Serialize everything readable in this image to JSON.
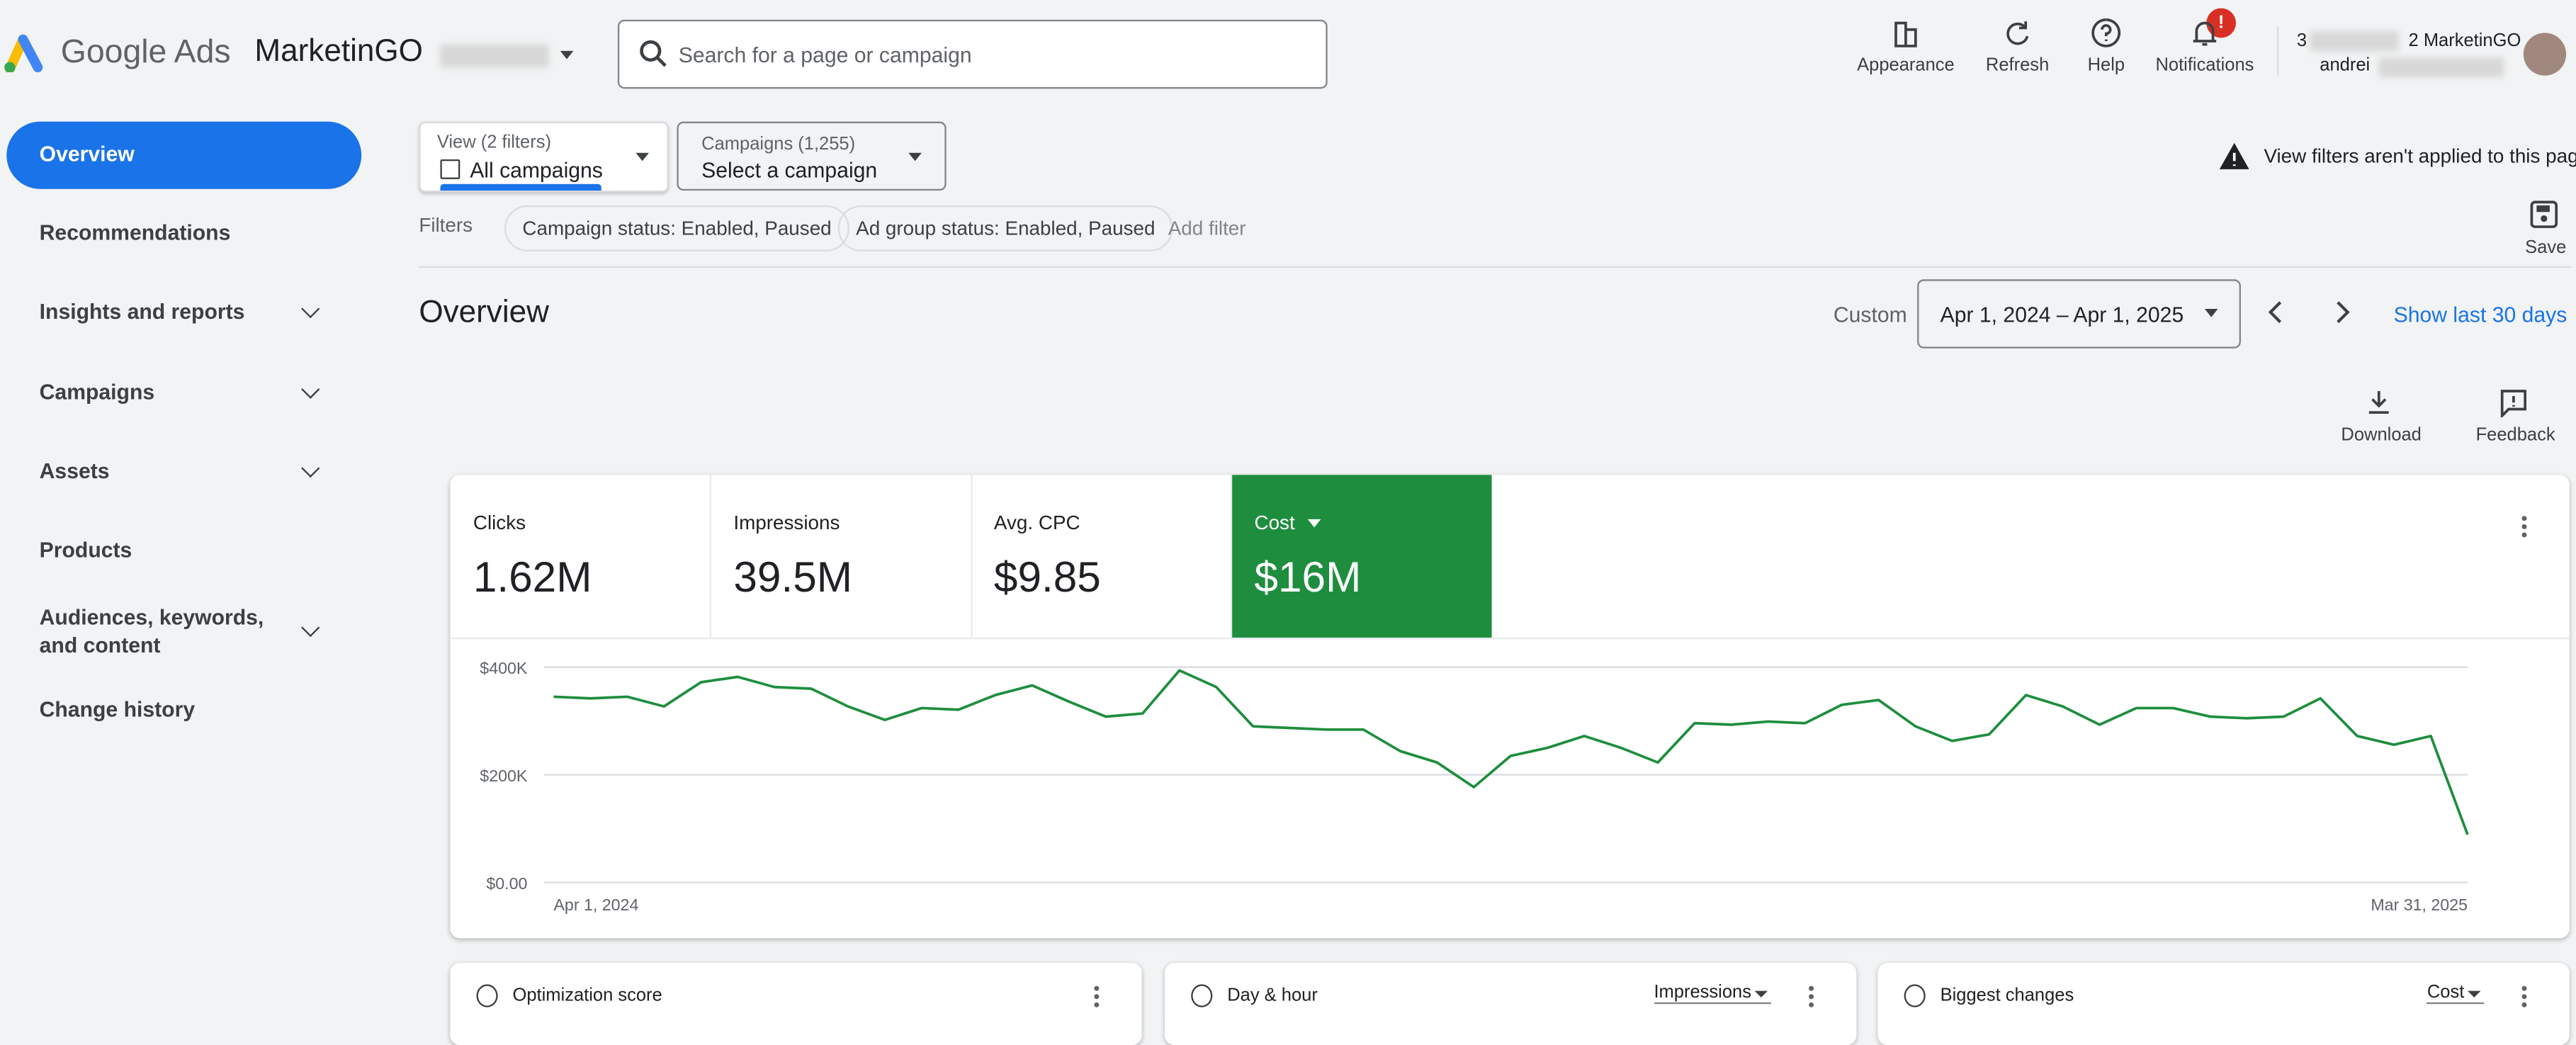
{
  "header": {
    "product": "Google Ads",
    "account": "MarketinGO",
    "search_placeholder": "Search for a page or campaign",
    "actions": [
      "Appearance",
      "Refresh",
      "Help",
      "Notifications"
    ],
    "badge": "!",
    "account_name": "MarketinGO",
    "user": "andrei"
  },
  "sidebar": {
    "items": [
      "Overview",
      "Recommendations",
      "Insights and reports",
      "Campaigns",
      "Assets",
      "Products",
      "Audiences, keywords, and content",
      "Change history"
    ]
  },
  "filters": {
    "view_label": "View (2 filters)",
    "view_value": "All campaigns",
    "campaigns_label": "Campaigns (1,255)",
    "campaigns_value": "Select a campaign",
    "warning": "View filters aren't applied to this page",
    "filters_label": "Filters",
    "chips": [
      "Campaign status: Enabled, Paused",
      "Ad group status: Enabled, Paused"
    ],
    "add_filter": "Add filter",
    "save": "Save"
  },
  "overview": {
    "title": "Overview",
    "custom": "Custom",
    "date_range": "Apr 1, 2024 – Apr 1, 2025",
    "show_last": "Show last 30 days",
    "download": "Download",
    "feedback": "Feedback"
  },
  "metrics": [
    {
      "label": "Clicks",
      "value": "1.62M"
    },
    {
      "label": "Impressions",
      "value": "39.5M"
    },
    {
      "label": "Avg. CPC",
      "value": "$9.85"
    },
    {
      "label": "Cost",
      "value": "$16M"
    }
  ],
  "chart_data": {
    "type": "line",
    "color": "#1e8e3e",
    "grid": true,
    "categories": [
      "Apr 1, 2024",
      null,
      null,
      null,
      null,
      null,
      null,
      null,
      null,
      null,
      null,
      null,
      null,
      null,
      null,
      null,
      null,
      null,
      null,
      null,
      null,
      null,
      null,
      null,
      null,
      null,
      null,
      null,
      null,
      null,
      null,
      null,
      null,
      null,
      null,
      null,
      null,
      null,
      null,
      null,
      null,
      null,
      null,
      null,
      null,
      null,
      null,
      null,
      null,
      null,
      null,
      null,
      "Mar 31, 2025"
    ],
    "series": [
      {
        "name": "Cost",
        "color": "#1e8e3e",
        "values": [
          345000,
          342000,
          345000,
          327000,
          372000,
          382000,
          363000,
          360000,
          327000,
          302000,
          324000,
          321000,
          348000,
          366000,
          336000,
          308000,
          314000,
          394000,
          363000,
          290000,
          287000,
          284000,
          284000,
          244000,
          223000,
          177000,
          235000,
          250000,
          272000,
          250000,
          223000,
          296000,
          293000,
          299000,
          296000,
          330000,
          339000,
          290000,
          263000,
          275000,
          348000,
          327000,
          293000,
          324000,
          324000,
          308000,
          305000,
          308000,
          342000,
          272000,
          256000,
          272000,
          89000
        ]
      }
    ],
    "ylim": [
      0,
      400000
    ],
    "yticks": [
      {
        "value": 0,
        "label": "$0.00"
      },
      {
        "value": 200000,
        "label": "$200K"
      },
      {
        "value": 400000,
        "label": "$400K"
      }
    ]
  },
  "cards": [
    {
      "title": "Optimization score"
    },
    {
      "title": "Day & hour",
      "selector": "Impressions"
    },
    {
      "title": "Biggest changes",
      "selector": "Cost"
    }
  ]
}
